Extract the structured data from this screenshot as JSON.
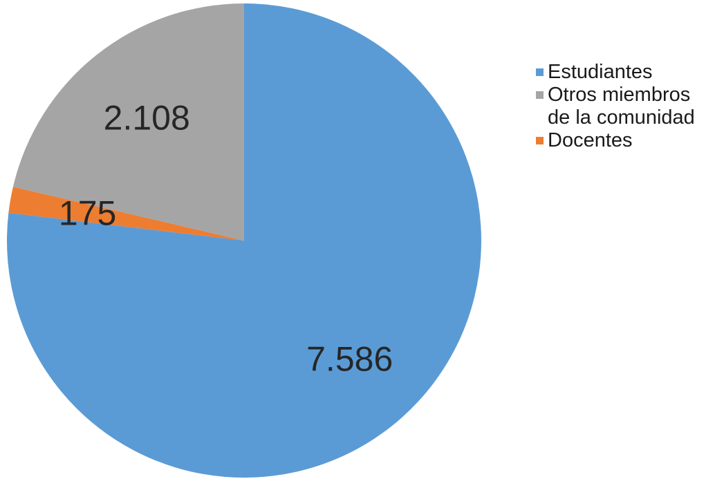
{
  "chart_data": {
    "type": "pie",
    "title": "",
    "slices": [
      {
        "name": "Estudiantes",
        "value": 7586,
        "label": "7.586",
        "color": "#5B9BD5"
      },
      {
        "name": "Docentes",
        "value": 175,
        "label": "175",
        "color": "#ED7D31"
      },
      {
        "name": "Otros miembros de la comunidad",
        "value": 2108,
        "label": "2.108",
        "color": "#A5A5A5"
      }
    ],
    "legend": {
      "placement": "right",
      "items": [
        {
          "lines": [
            "Estudiantes"
          ],
          "color": "#5B9BD5"
        },
        {
          "lines": [
            "Otros miembros",
            "de la comunidad"
          ],
          "color": "#A5A5A5"
        },
        {
          "lines": [
            "Docentes"
          ],
          "color": "#ED7D31"
        }
      ]
    }
  }
}
